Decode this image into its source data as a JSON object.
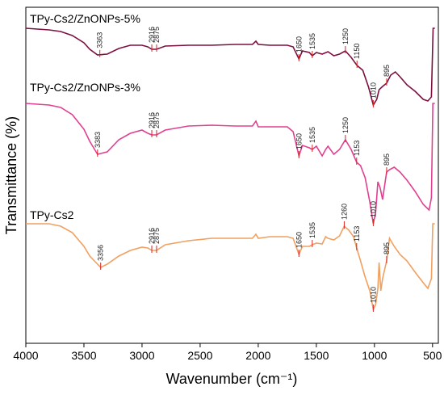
{
  "chart_data": {
    "type": "line",
    "xlabel": "Wavenumber (cm⁻¹)",
    "ylabel": "Transmittance (%)",
    "xlim": [
      4000,
      450
    ],
    "x_reversed": true,
    "x_ticks": [
      4000,
      3500,
      3000,
      2500,
      2000,
      1500,
      1000,
      500
    ],
    "y_ticks_shown": false,
    "grid": false,
    "series": [
      {
        "name": "TPy-Cs2/ZnONPs-5%",
        "color": "#7b1040",
        "points": [
          [
            4000,
            20
          ],
          [
            3800,
            22
          ],
          [
            3700,
            24
          ],
          [
            3600,
            29
          ],
          [
            3500,
            38
          ],
          [
            3450,
            46
          ],
          [
            3383,
            53
          ],
          [
            3300,
            52
          ],
          [
            3200,
            45
          ],
          [
            3100,
            41
          ],
          [
            3000,
            41
          ],
          [
            2950,
            43
          ],
          [
            2916,
            46
          ],
          [
            2875,
            46
          ],
          [
            2800,
            42
          ],
          [
            2600,
            41
          ],
          [
            2400,
            41
          ],
          [
            2200,
            40
          ],
          [
            2050,
            40
          ],
          [
            2020,
            36
          ],
          [
            2000,
            40
          ],
          [
            1900,
            41
          ],
          [
            1750,
            41
          ],
          [
            1700,
            43
          ],
          [
            1650,
            58
          ],
          [
            1620,
            48
          ],
          [
            1560,
            50
          ],
          [
            1535,
            54
          ],
          [
            1500,
            50
          ],
          [
            1450,
            52
          ],
          [
            1400,
            49
          ],
          [
            1350,
            54
          ],
          [
            1300,
            52
          ],
          [
            1250,
            48
          ],
          [
            1200,
            56
          ],
          [
            1150,
            66
          ],
          [
            1100,
            72
          ],
          [
            1050,
            93
          ],
          [
            1010,
            115
          ],
          [
            980,
            108
          ],
          [
            960,
            96
          ],
          [
            930,
            92
          ],
          [
            895,
            88
          ],
          [
            860,
            78
          ],
          [
            820,
            74
          ],
          [
            780,
            80
          ],
          [
            720,
            90
          ],
          [
            650,
            98
          ],
          [
            580,
            108
          ],
          [
            540,
            110
          ],
          [
            510,
            105
          ],
          [
            495,
            20
          ],
          [
            480,
            20
          ]
        ],
        "peaks": [
          3363,
          2916,
          2875,
          1650,
          1535,
          1250,
          1150,
          1010,
          895
        ]
      },
      {
        "name": "TPy-Cs2/ZnONPs-3%",
        "color": "#e0408f",
        "points": [
          [
            4000,
            123
          ],
          [
            3800,
            125
          ],
          [
            3700,
            128
          ],
          [
            3600,
            137
          ],
          [
            3500,
            155
          ],
          [
            3450,
            170
          ],
          [
            3383,
            186
          ],
          [
            3300,
            183
          ],
          [
            3200,
            168
          ],
          [
            3100,
            160
          ],
          [
            3000,
            156
          ],
          [
            2950,
            160
          ],
          [
            2916,
            162
          ],
          [
            2875,
            162
          ],
          [
            2800,
            156
          ],
          [
            2600,
            151
          ],
          [
            2400,
            150
          ],
          [
            2200,
            151
          ],
          [
            2050,
            151
          ],
          [
            2020,
            145
          ],
          [
            2000,
            152
          ],
          [
            1900,
            152
          ],
          [
            1750,
            152
          ],
          [
            1700,
            158
          ],
          [
            1650,
            188
          ],
          [
            1620,
            175
          ],
          [
            1560,
            178
          ],
          [
            1535,
            180
          ],
          [
            1500,
            176
          ],
          [
            1450,
            188
          ],
          [
            1420,
            180
          ],
          [
            1400,
            176
          ],
          [
            1350,
            186
          ],
          [
            1300,
            180
          ],
          [
            1250,
            168
          ],
          [
            1200,
            180
          ],
          [
            1153,
            196
          ],
          [
            1120,
            200
          ],
          [
            1080,
            215
          ],
          [
            1040,
            245
          ],
          [
            1010,
            272
          ],
          [
            990,
            258
          ],
          [
            970,
            220
          ],
          [
            950,
            228
          ],
          [
            930,
            242
          ],
          [
            895,
            208
          ],
          [
            870,
            205
          ],
          [
            830,
            202
          ],
          [
            780,
            208
          ],
          [
            720,
            218
          ],
          [
            650,
            232
          ],
          [
            580,
            248
          ],
          [
            530,
            255
          ],
          [
            510,
            240
          ],
          [
            497,
            123
          ],
          [
            480,
            123
          ]
        ],
        "peaks": [
          3383,
          2916,
          2875,
          1650,
          1535,
          1250,
          1153,
          1010,
          895
        ]
      },
      {
        "name": "TPy-Cs2",
        "color": "#f0a060",
        "points": [
          [
            4000,
            272
          ],
          [
            3800,
            272
          ],
          [
            3700,
            275
          ],
          [
            3600,
            283
          ],
          [
            3500,
            300
          ],
          [
            3450,
            312
          ],
          [
            3356,
            326
          ],
          [
            3300,
            322
          ],
          [
            3200,
            312
          ],
          [
            3100,
            305
          ],
          [
            3000,
            301
          ],
          [
            2950,
            302
          ],
          [
            2916,
            305
          ],
          [
            2875,
            305
          ],
          [
            2800,
            298
          ],
          [
            2600,
            293
          ],
          [
            2400,
            290
          ],
          [
            2200,
            290
          ],
          [
            2050,
            290
          ],
          [
            2020,
            285
          ],
          [
            2000,
            290
          ],
          [
            1900,
            288
          ],
          [
            1750,
            288
          ],
          [
            1700,
            290
          ],
          [
            1650,
            310
          ],
          [
            1620,
            300
          ],
          [
            1560,
            300
          ],
          [
            1535,
            298
          ],
          [
            1500,
            296
          ],
          [
            1450,
            297
          ],
          [
            1420,
            288
          ],
          [
            1400,
            290
          ],
          [
            1350,
            292
          ],
          [
            1300,
            287
          ],
          [
            1260,
            275
          ],
          [
            1220,
            280
          ],
          [
            1180,
            288
          ],
          [
            1153,
            302
          ],
          [
            1120,
            318
          ],
          [
            1080,
            338
          ],
          [
            1040,
            355
          ],
          [
            1010,
            378
          ],
          [
            990,
            372
          ],
          [
            970,
            352
          ],
          [
            960,
            320
          ],
          [
            945,
            355
          ],
          [
            930,
            340
          ],
          [
            895,
            318
          ],
          [
            870,
            290
          ],
          [
            830,
            300
          ],
          [
            780,
            310
          ],
          [
            720,
            318
          ],
          [
            650,
            332
          ],
          [
            580,
            345
          ],
          [
            540,
            352
          ],
          [
            510,
            340
          ],
          [
            498,
            272
          ],
          [
            480,
            272
          ]
        ],
        "peaks": [
          3356,
          2916,
          2875,
          1650,
          1535,
          1260,
          1153,
          1010,
          895
        ]
      }
    ]
  }
}
